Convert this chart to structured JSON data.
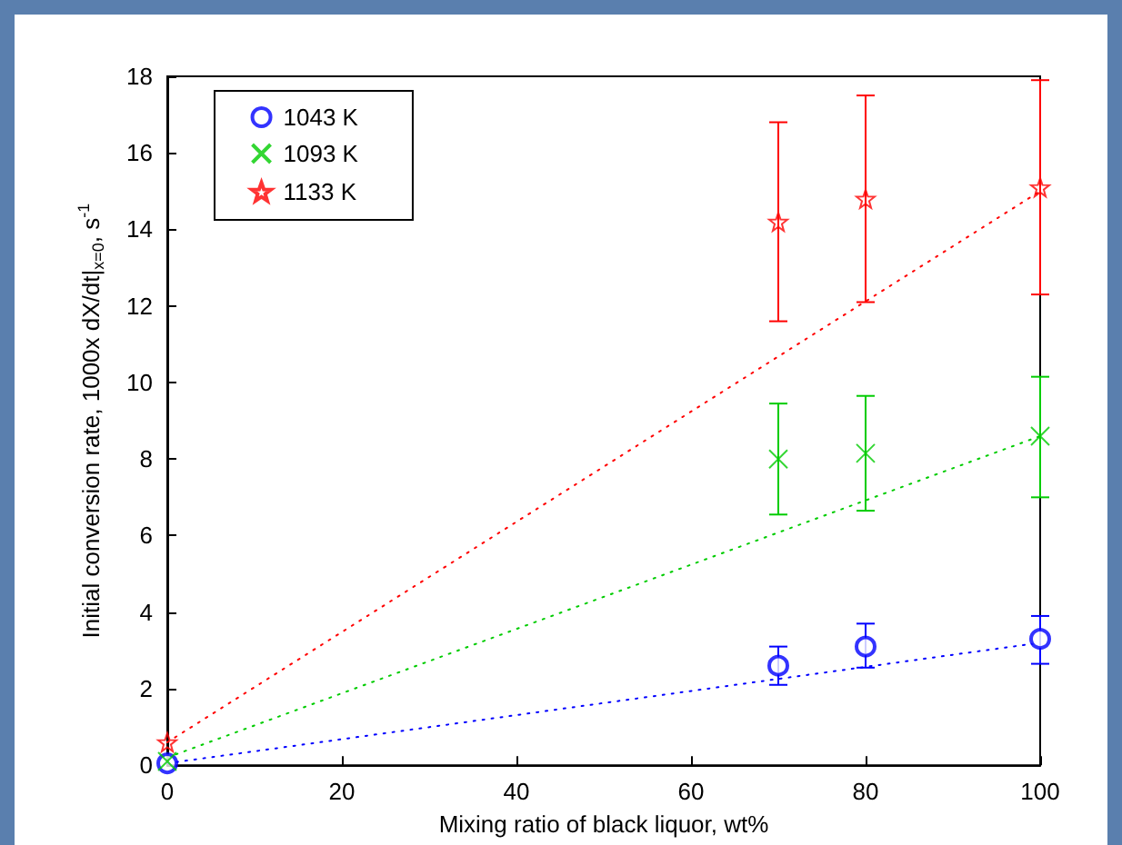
{
  "chart_data": {
    "type": "scatter",
    "xlabel": "Mixing ratio of black liquor, wt%",
    "ylabel": "Initial conversion rate, 1000x dX/dt|$_{x=0}$, s$^{-1}$",
    "xlim": [
      0,
      100
    ],
    "xticks": [
      0,
      20,
      40,
      60,
      80,
      100
    ],
    "ylim": [
      0,
      18
    ],
    "yticks": [
      0,
      2,
      4,
      6,
      8,
      10,
      12,
      14,
      16,
      18
    ],
    "grid": false,
    "legend": "top left",
    "series": [
      {
        "name": "1043 K",
        "color": "#0000ff",
        "marker": "circle",
        "x": [
          0,
          70,
          80,
          100
        ],
        "values": [
          0.05,
          2.6,
          3.1,
          3.3
        ],
        "errors": [
          null,
          [
            2.1,
            3.1
          ],
          [
            2.55,
            3.7
          ],
          [
            2.65,
            3.9
          ]
        ]
      },
      {
        "name": "1093 K",
        "color": "#00cc00",
        "marker": "cross",
        "x": [
          0,
          70,
          80,
          100
        ],
        "values": [
          0.1,
          8.0,
          8.15,
          8.6
        ],
        "errors": [
          null,
          [
            6.55,
            9.45
          ],
          [
            6.65,
            9.65
          ],
          [
            7.0,
            10.15
          ]
        ]
      },
      {
        "name": "1133 K",
        "color": "#ff0000",
        "marker": "star",
        "x": [
          0,
          70,
          80,
          100
        ],
        "values": [
          0.6,
          14.2,
          14.8,
          15.1
        ],
        "errors": [
          null,
          [
            11.6,
            16.8
          ],
          [
            12.1,
            17.5
          ],
          [
            12.3,
            17.9
          ]
        ]
      },
      {
        "type": "line",
        "color": "#0000ff",
        "line_style": "dotted",
        "marker": "none",
        "x": [
          0,
          100
        ],
        "values": [
          0.05,
          3.2
        ]
      },
      {
        "type": "line",
        "color": "#00cc00",
        "line_style": "dotted",
        "marker": "none",
        "x": [
          0,
          100
        ],
        "values": [
          0.2,
          8.6
        ]
      },
      {
        "type": "line",
        "color": "#ff0000",
        "line_style": "dotted",
        "marker": "none",
        "x": [
          0,
          100
        ],
        "values": [
          0.6,
          15.0
        ]
      }
    ]
  }
}
